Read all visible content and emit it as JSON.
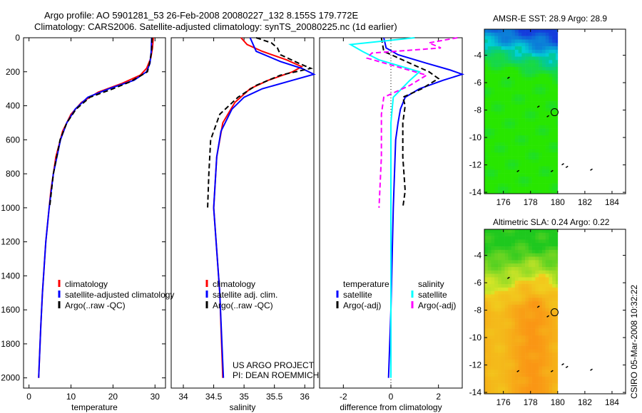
{
  "title_line1": "Argo profile: AO 5901281_53 26-Feb-2008 20080227_132 8.155S 179.772E",
  "title_line2": "Climatology: CARS2006. Satellite-adjusted climatology: synTS_20080225.nc (1d earlier)",
  "credit": "CSIRO 05-Mar-2008 10:32:22",
  "project_line1": "US ARGO PROJECT",
  "project_line2": "PI: DEAN ROEMMICH",
  "colors": {
    "climatology": "#ff0000",
    "satellite": "#0000ff",
    "argo": "#000000",
    "sal_satellite": "#00ffff",
    "sal_argo": "#ff00ff"
  },
  "chart_data": [
    {
      "type": "line",
      "name": "temperature",
      "xlabel": "temperature",
      "ylabel": "",
      "xlim": [
        -1.3,
        32.5
      ],
      "ylim": [
        2060,
        0
      ],
      "xticks": [
        0,
        10,
        20,
        30
      ],
      "yticks": [
        0,
        200,
        400,
        600,
        800,
        1000,
        1200,
        1400,
        1600,
        1800,
        2000
      ],
      "legend": [
        "climatology",
        "satellite-adjusted climatology",
        "Argo(..raw -QC)"
      ],
      "series": [
        {
          "name": "climatology",
          "color": "#ff0000",
          "dash": false,
          "points": [
            [
              0,
              29.6
            ],
            [
              60,
              29.4
            ],
            [
              120,
              29
            ],
            [
              180,
              28
            ],
            [
              220,
              26.5
            ],
            [
              270,
              22
            ],
            [
              320,
              16.5
            ],
            [
              380,
              12.5
            ],
            [
              450,
              10
            ],
            [
              550,
              8
            ],
            [
              700,
              6.4
            ],
            [
              900,
              5.2
            ],
            [
              1000,
              4.8
            ],
            [
              1200,
              4.0
            ],
            [
              1500,
              3.2
            ],
            [
              1700,
              2.8
            ],
            [
              2000,
              2.3
            ]
          ]
        },
        {
          "name": "satellite-adjusted climatology",
          "color": "#0000ff",
          "dash": false,
          "points": [
            [
              0,
              29.2
            ],
            [
              80,
              29.1
            ],
            [
              150,
              28.8
            ],
            [
              200,
              28
            ],
            [
              250,
              25
            ],
            [
              300,
              19
            ],
            [
              350,
              14
            ],
            [
              420,
              11
            ],
            [
              500,
              9
            ],
            [
              600,
              7.5
            ],
            [
              800,
              5.8
            ],
            [
              1000,
              4.8
            ],
            [
              1200,
              4.0
            ],
            [
              1500,
              3.2
            ],
            [
              1700,
              2.8
            ],
            [
              2000,
              2.3
            ]
          ]
        },
        {
          "name": "Argo(..raw -QC)",
          "color": "#000000",
          "dash": true,
          "points": [
            [
              0,
              29.3
            ],
            [
              80,
              29.2
            ],
            [
              150,
              28.7
            ],
            [
              200,
              28.2
            ],
            [
              260,
              24
            ],
            [
              300,
              20
            ],
            [
              350,
              14.5
            ],
            [
              420,
              11.2
            ],
            [
              500,
              9
            ],
            [
              600,
              7.4
            ],
            [
              800,
              5.8
            ],
            [
              1000,
              4.9
            ]
          ]
        }
      ]
    },
    {
      "type": "line",
      "name": "salinity",
      "xlabel": "salinity",
      "ylabel": "",
      "xlim": [
        33.8,
        36.15
      ],
      "ylim": [
        2060,
        0
      ],
      "xticks": [
        34,
        34.5,
        35,
        35.5,
        36
      ],
      "yticks": [],
      "legend": [
        "climatology",
        "satellite adj. clim.",
        "Argo(..raw -QC)"
      ],
      "series": [
        {
          "name": "climatology",
          "color": "#ff0000",
          "dash": false,
          "points": [
            [
              0,
              34.95
            ],
            [
              40,
              35.05
            ],
            [
              80,
              35.3
            ],
            [
              130,
              35.7
            ],
            [
              170,
              35.95
            ],
            [
              200,
              35.8
            ],
            [
              250,
              35.4
            ],
            [
              300,
              35.1
            ],
            [
              380,
              34.85
            ],
            [
              500,
              34.65
            ],
            [
              700,
              34.55
            ],
            [
              1000,
              34.5
            ],
            [
              1500,
              34.6
            ],
            [
              2000,
              34.65
            ]
          ]
        },
        {
          "name": "satellite adj. clim.",
          "color": "#0000ff",
          "dash": false,
          "points": [
            [
              0,
              35.1
            ],
            [
              40,
              35.15
            ],
            [
              80,
              35.2
            ],
            [
              140,
              35.6
            ],
            [
              180,
              35.95
            ],
            [
              215,
              36.15
            ],
            [
              250,
              35.8
            ],
            [
              300,
              35.3
            ],
            [
              350,
              35.0
            ],
            [
              420,
              34.8
            ],
            [
              550,
              34.62
            ],
            [
              700,
              34.55
            ],
            [
              1000,
              34.5
            ],
            [
              1500,
              34.6
            ],
            [
              2000,
              34.66
            ]
          ]
        },
        {
          "name": "Argo(..raw -QC)",
          "color": "#000000",
          "dash": true,
          "points": [
            [
              0,
              35.2
            ],
            [
              30,
              35.45
            ],
            [
              60,
              35.55
            ],
            [
              100,
              35.6
            ],
            [
              150,
              35.9
            ],
            [
              180,
              36.1
            ],
            [
              220,
              35.6
            ],
            [
              280,
              35.2
            ],
            [
              350,
              34.9
            ],
            [
              450,
              34.6
            ],
            [
              600,
              34.45
            ],
            [
              800,
              34.42
            ],
            [
              1000,
              34.4
            ]
          ]
        }
      ]
    },
    {
      "type": "line",
      "name": "difference",
      "xlabel": "difference from climatology",
      "ylabel": "",
      "xlim": [
        -3,
        3
      ],
      "ylim": [
        2060,
        0
      ],
      "xticks": [
        -2,
        0,
        2
      ],
      "yticks": [],
      "legend_groups": [
        {
          "heading": "temperature",
          "items": [
            "satellite",
            "Argo(-adj)"
          ]
        },
        {
          "heading": "salinity",
          "items": [
            "satellite",
            "Argo(-adj)"
          ]
        }
      ],
      "series": [
        {
          "name": "temperature satellite",
          "color": "#0000ff",
          "dash": false,
          "points": [
            [
              0,
              -0.3
            ],
            [
              60,
              -0.2
            ],
            [
              100,
              0.3
            ],
            [
              150,
              1.5
            ],
            [
              190,
              2.5
            ],
            [
              215,
              3.0
            ],
            [
              250,
              2.2
            ],
            [
              300,
              1.2
            ],
            [
              350,
              0.6
            ],
            [
              420,
              0.4
            ],
            [
              500,
              0.3
            ],
            [
              600,
              0.2
            ],
            [
              1000,
              0.1
            ],
            [
              1600,
              0
            ],
            [
              2000,
              -0.1
            ]
          ]
        },
        {
          "name": "temperature Argo(-adj)",
          "color": "#000000",
          "dash": true,
          "points": [
            [
              0,
              -0.4
            ],
            [
              80,
              -0.3
            ],
            [
              150,
              0.8
            ],
            [
              200,
              1.6
            ],
            [
              240,
              2.0
            ],
            [
              300,
              1.3
            ],
            [
              350,
              0.5
            ],
            [
              400,
              0.6
            ],
            [
              500,
              0.5
            ],
            [
              700,
              0.5
            ],
            [
              900,
              0.6
            ],
            [
              1000,
              0.5
            ]
          ]
        },
        {
          "name": "salinity satellite",
          "color": "#00ffff",
          "dash": false,
          "points": [
            [
              0,
              1.0
            ],
            [
              40,
              -1.7
            ],
            [
              80,
              -1.2
            ],
            [
              130,
              -0.5
            ],
            [
              200,
              1.2
            ],
            [
              250,
              0.8
            ],
            [
              350,
              0.1
            ],
            [
              500,
              0
            ],
            [
              1000,
              0
            ],
            [
              2000,
              0
            ]
          ]
        },
        {
          "name": "salinity Argo(-adj)",
          "color": "#ff00ff",
          "dash": true,
          "points": [
            [
              0,
              2.8
            ],
            [
              30,
              1.6
            ],
            [
              60,
              2.1
            ],
            [
              90,
              -0.8
            ],
            [
              120,
              -1.0
            ],
            [
              160,
              0
            ],
            [
              220,
              1.5
            ],
            [
              280,
              0.8
            ],
            [
              350,
              -0.3
            ],
            [
              450,
              -0.4
            ],
            [
              700,
              -0.4
            ],
            [
              1000,
              -0.5
            ]
          ]
        }
      ]
    },
    {
      "type": "heatmap",
      "name": "sst-map",
      "title": "AMSR-E SST: 28.9 Argo: 28.9",
      "xlim": [
        174.6,
        185
      ],
      "ylim": [
        -14.1,
        -2.1
      ],
      "xticks": [
        176,
        178,
        180,
        182,
        184
      ],
      "yticks": [
        -4,
        -6,
        -8,
        -10,
        -12,
        -14
      ],
      "data_lon_max": 180,
      "argo_position": [
        179.772,
        -8.155
      ]
    },
    {
      "type": "heatmap",
      "name": "sla-map",
      "title": "Altimetric SLA: 0.24 Argo: 0.22",
      "xlim": [
        174.6,
        185
      ],
      "ylim": [
        -14.1,
        -2.1
      ],
      "xticks": [
        176,
        178,
        180,
        182,
        184
      ],
      "yticks": [
        -4,
        -6,
        -8,
        -10,
        -12,
        -14
      ],
      "data_lon_max": 180,
      "argo_position": [
        179.772,
        -8.155
      ]
    }
  ]
}
